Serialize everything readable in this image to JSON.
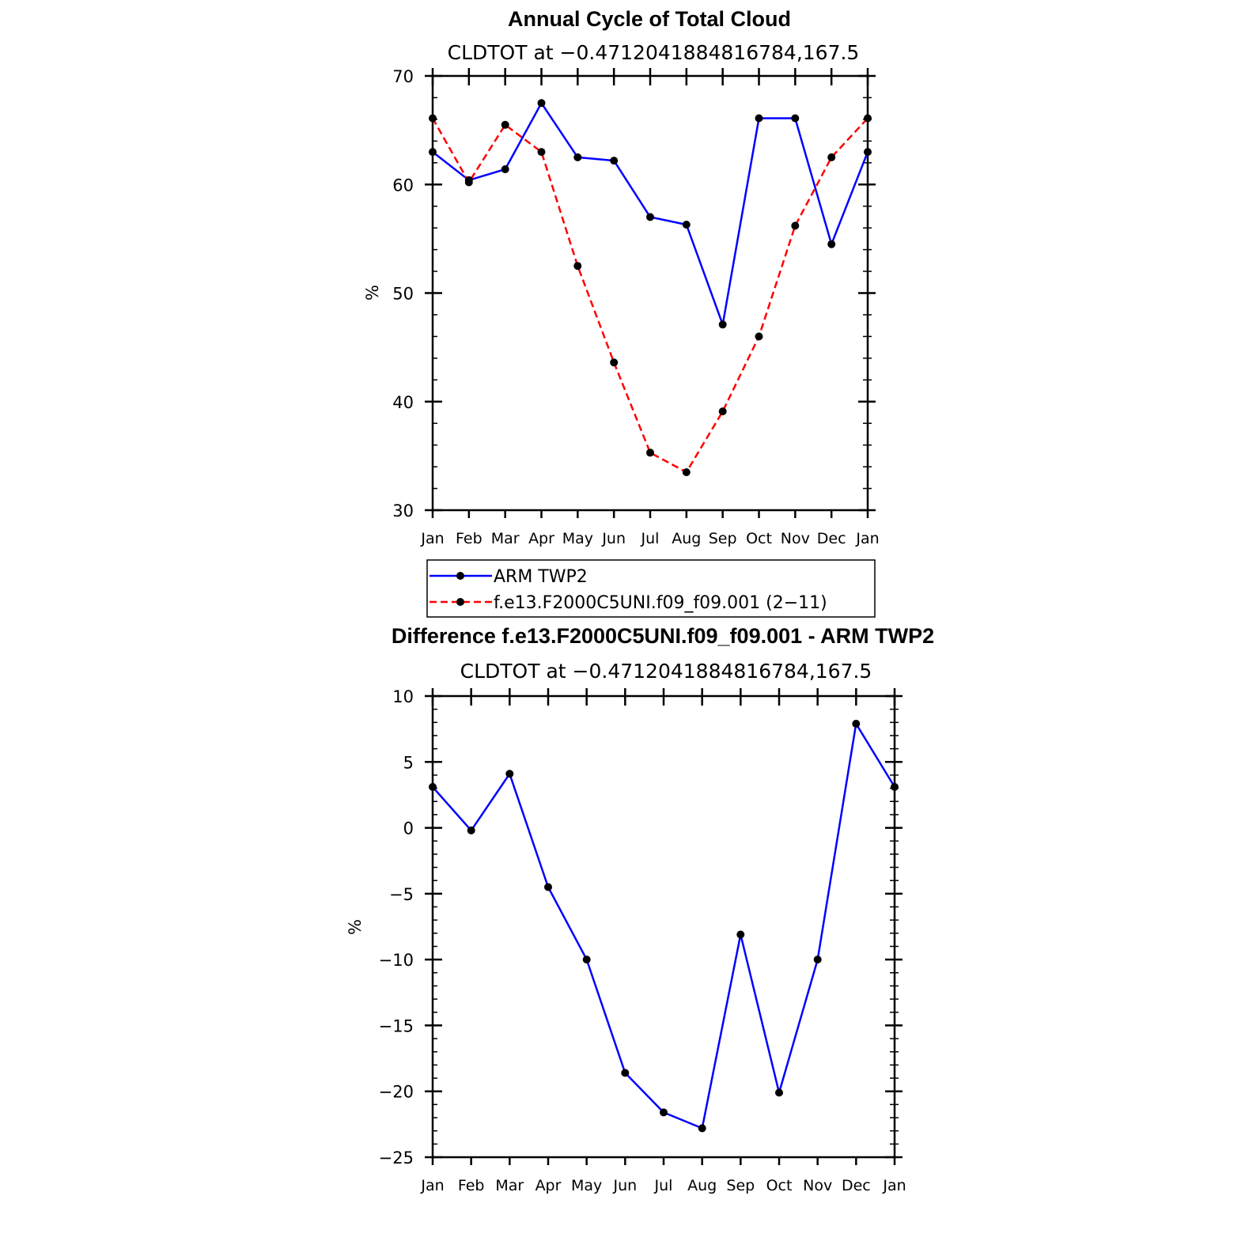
{
  "chart_data": [
    {
      "type": "line",
      "title": "Annual Cycle of Total Cloud",
      "subtitle": "CLDTOT at −0.4712041884816784,167.5",
      "xlabel": "",
      "ylabel": "%",
      "categories": [
        "Jan",
        "Feb",
        "Mar",
        "Apr",
        "May",
        "Jun",
        "Jul",
        "Aug",
        "Sep",
        "Oct",
        "Nov",
        "Dec",
        "Jan"
      ],
      "ylim": [
        30,
        70
      ],
      "yticks": [
        30,
        40,
        50,
        60,
        70
      ],
      "ytick_labels": [
        "30",
        "40",
        "50",
        "60",
        "70"
      ],
      "series": [
        {
          "name": "ARM TWP2",
          "color": "#0000ff",
          "dashed": false,
          "values": [
            63.0,
            60.4,
            61.4,
            67.5,
            62.5,
            62.2,
            57.0,
            56.3,
            47.1,
            66.1,
            66.1,
            54.5,
            63.0
          ]
        },
        {
          "name": "f.e13.F2000C5UNI.f09_f09.001 (2−11)",
          "color": "#ff0000",
          "dashed": true,
          "values": [
            66.1,
            60.2,
            65.5,
            63.0,
            52.5,
            43.6,
            35.3,
            33.5,
            39.1,
            46.0,
            56.2,
            62.5,
            66.1
          ]
        }
      ],
      "legend": [
        {
          "label": "ARM TWP2",
          "color": "#0000ff",
          "dashed": false
        },
        {
          "label": "f.e13.F2000C5UNI.f09_f09.001 (2−11)",
          "color": "#ff0000",
          "dashed": true
        }
      ]
    },
    {
      "type": "line",
      "title": "Difference f.e13.F2000C5UNI.f09_f09.001 - ARM TWP2",
      "subtitle": "CLDTOT at −0.4712041884816784,167.5",
      "xlabel": "",
      "ylabel": "%",
      "categories": [
        "Jan",
        "Feb",
        "Mar",
        "Apr",
        "May",
        "Jun",
        "Jul",
        "Aug",
        "Sep",
        "Oct",
        "Nov",
        "Dec",
        "Jan"
      ],
      "ylim": [
        -25,
        10
      ],
      "yticks": [
        -25,
        -20,
        -15,
        -10,
        -5,
        0,
        5,
        10
      ],
      "ytick_labels": [
        "−25",
        "−20",
        "−15",
        "−10",
        "−5",
        "0",
        "5",
        "10"
      ],
      "series": [
        {
          "name": "Difference",
          "color": "#0000ff",
          "dashed": false,
          "values": [
            3.1,
            -0.2,
            4.1,
            -4.5,
            -10.0,
            -18.6,
            -21.6,
            -22.8,
            -8.1,
            -20.1,
            -10.0,
            7.9,
            3.1
          ]
        }
      ]
    }
  ]
}
